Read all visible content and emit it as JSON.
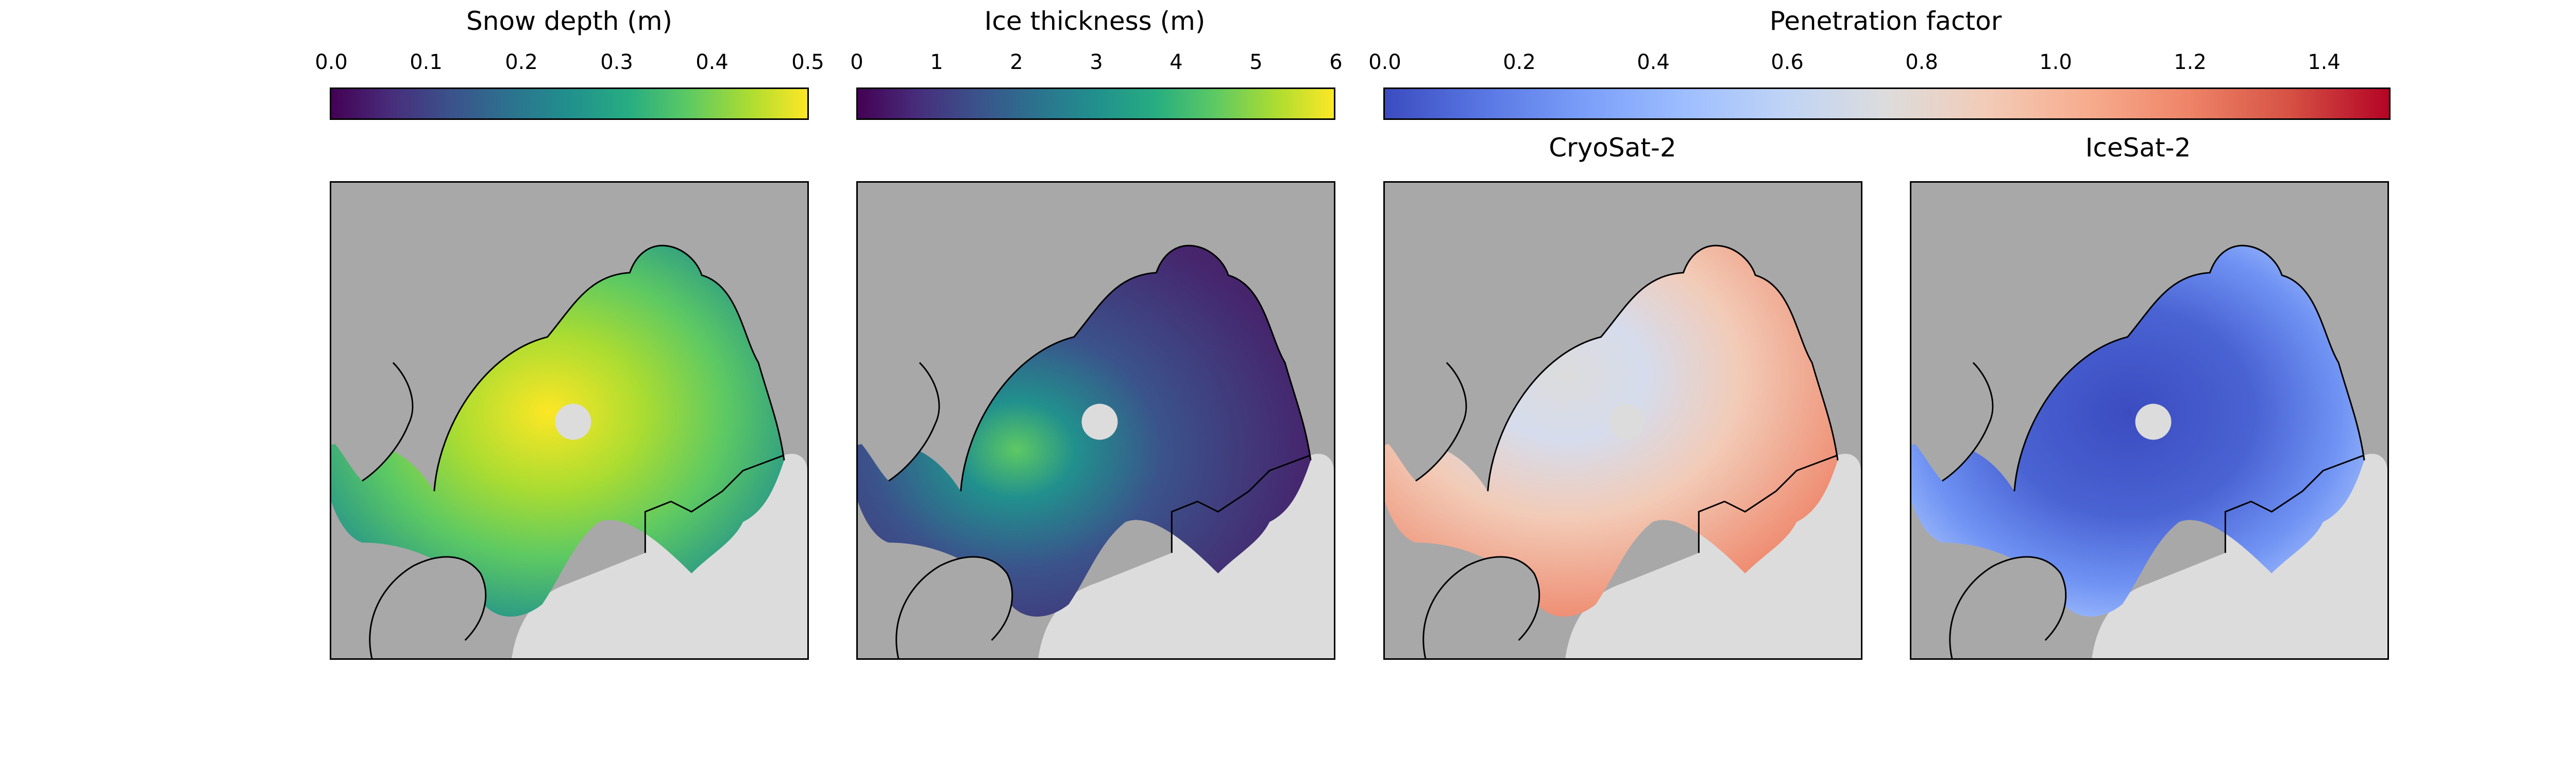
{
  "colorbars": [
    {
      "title": "Snow depth (m)",
      "ticks": [
        "0.0",
        "0.1",
        "0.2",
        "0.3",
        "0.4",
        "0.5"
      ],
      "min": 0.0,
      "max": 0.5,
      "colormap": "viridis"
    },
    {
      "title": "Ice thickness (m)",
      "ticks": [
        "0",
        "1",
        "2",
        "3",
        "4",
        "5",
        "6"
      ],
      "min": 0,
      "max": 6,
      "colormap": "viridis"
    },
    {
      "title": "Penetration factor",
      "ticks": [
        "0.0",
        "0.2",
        "0.4",
        "0.6",
        "0.8",
        "1.0",
        "1.2",
        "1.4"
      ],
      "min": 0.0,
      "max": 1.5,
      "colormap": "coolwarm"
    }
  ],
  "panels": [
    {
      "id": "snow-depth",
      "title": ""
    },
    {
      "id": "ice-thickness",
      "title": ""
    },
    {
      "id": "cryosat-2",
      "title": "CryoSat-2"
    },
    {
      "id": "icesat-2",
      "title": "IceSat-2"
    }
  ],
  "colors": {
    "land": "#a8a8a8",
    "no_data": "#dcdcdc",
    "coastline": "#000000",
    "viridis": [
      "#440154",
      "#3b528b",
      "#21908d",
      "#5dc963",
      "#fde725"
    ],
    "coolwarm": [
      "#3b4cc0",
      "#8db0fe",
      "#dddddd",
      "#f4987a",
      "#b40426"
    ]
  }
}
